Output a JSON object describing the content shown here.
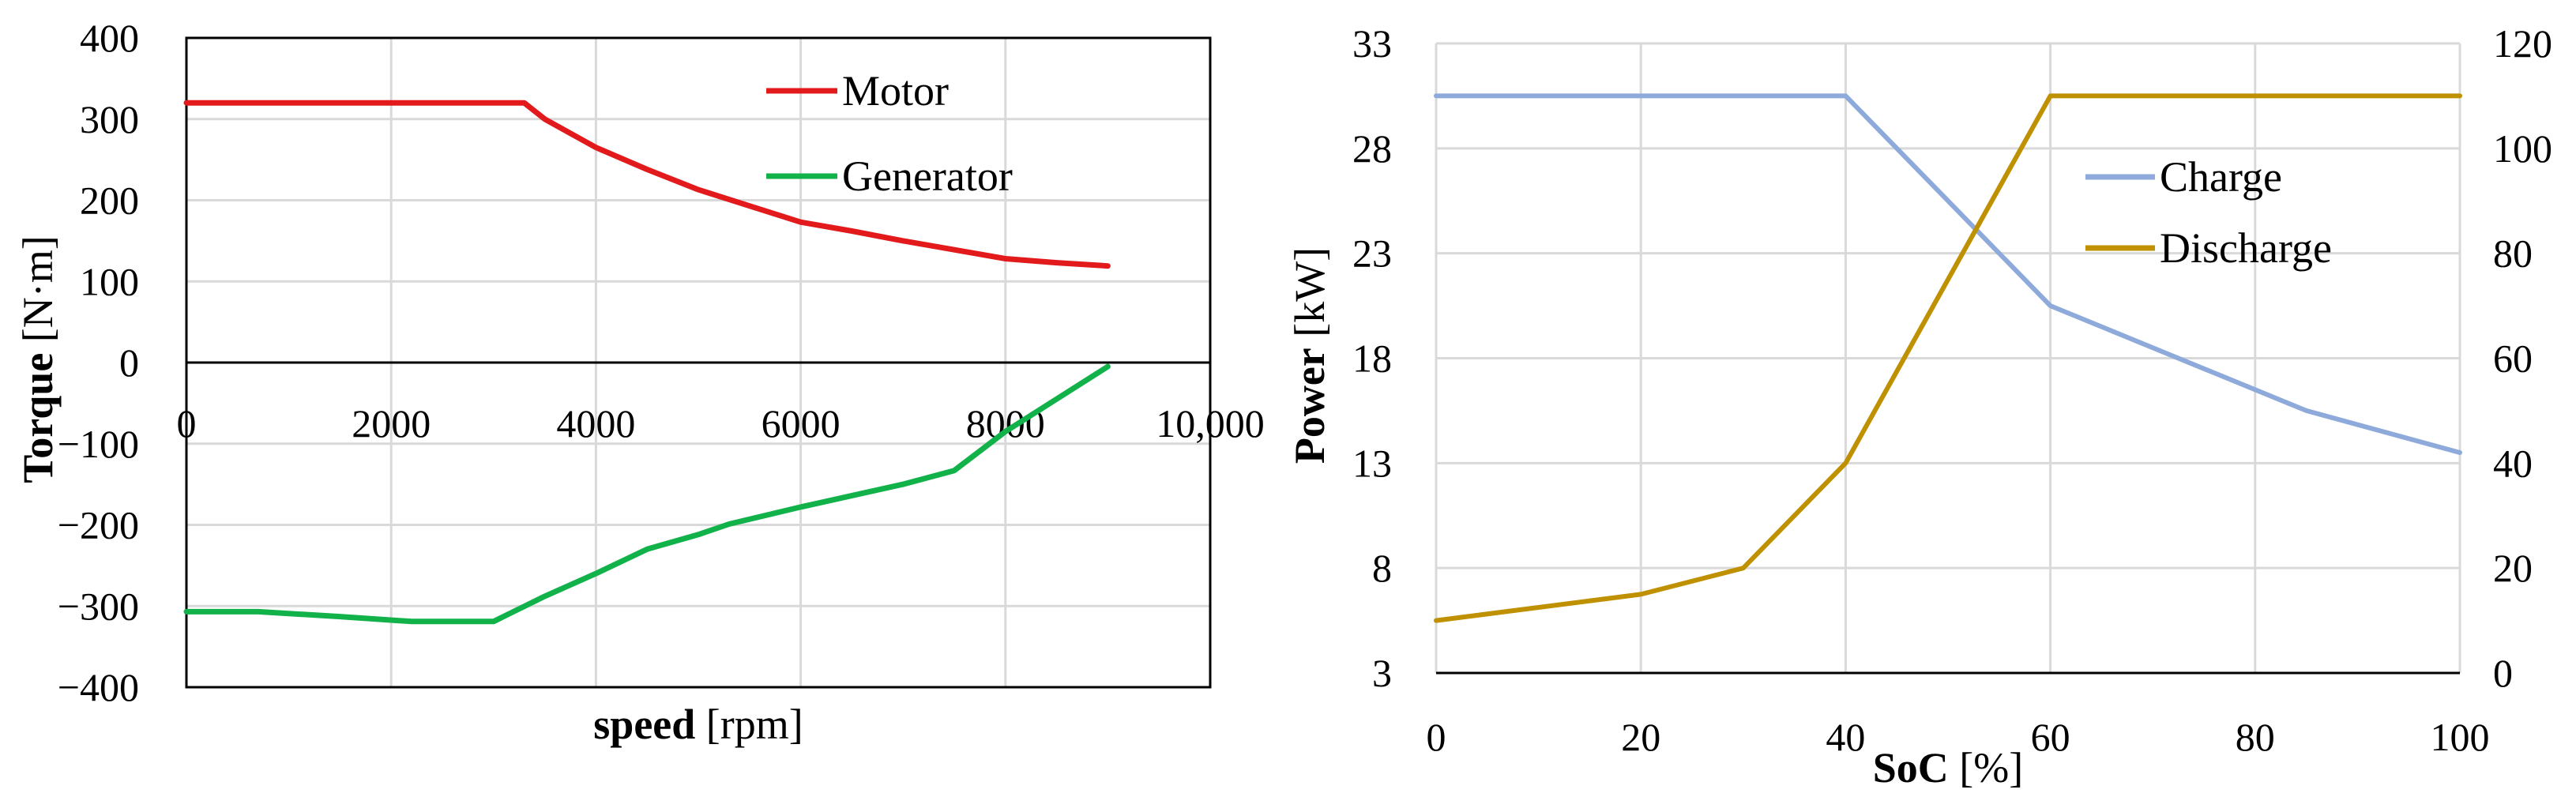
{
  "chart_data": [
    {
      "type": "line",
      "xlabel_bold": "speed",
      "xlabel_unit": " [rpm]",
      "ylabel_bold": "Torque",
      "ylabel_unit": " [N·m]",
      "xlim": [
        0,
        10000
      ],
      "ylim": [
        -400,
        400
      ],
      "x_ticks": [
        0,
        2000,
        4000,
        6000,
        8000,
        10000
      ],
      "x_tick_labels": [
        "0",
        "2000",
        "4000",
        "6000",
        "8000",
        "10,000"
      ],
      "y_ticks": [
        -400,
        -300,
        -200,
        -100,
        0,
        100,
        200,
        300,
        400
      ],
      "y_tick_labels": [
        "−400",
        "−300",
        "−200",
        "−100",
        "0",
        "100",
        "200",
        "300",
        "400"
      ],
      "grid": true,
      "legend_position": "top-right",
      "series": [
        {
          "name": "Motor",
          "color": "#e31a1c",
          "x": [
            0,
            3300,
            3500,
            4000,
            4500,
            5000,
            5500,
            6000,
            6500,
            7000,
            7500,
            8000,
            8500,
            9000
          ],
          "y": [
            320,
            320,
            300,
            265,
            238,
            213,
            193,
            173,
            162,
            150,
            139,
            128,
            123,
            119
          ]
        },
        {
          "name": "Generator",
          "color": "#12b24a",
          "x": [
            0,
            700,
            1500,
            2200,
            3000,
            3500,
            4000,
            4500,
            5000,
            5300,
            6000,
            7000,
            7500,
            8000,
            8500,
            9000
          ],
          "y": [
            -307,
            -307,
            -313,
            -319,
            -319,
            -288,
            -260,
            -230,
            -212,
            -199,
            -178,
            -150,
            -133,
            -85,
            -45,
            -5
          ]
        }
      ]
    },
    {
      "type": "line",
      "xlabel_bold": "SoC",
      "xlabel_unit": " [%]",
      "ylabel_bold": "Power",
      "ylabel_unit": " [kW]",
      "xlim": [
        0,
        100
      ],
      "ylim": [
        3,
        33
      ],
      "y2lim": [
        0,
        120
      ],
      "x_ticks": [
        0,
        20,
        40,
        60,
        80,
        100
      ],
      "x_tick_labels": [
        "0",
        "20",
        "40",
        "60",
        "80",
        "100"
      ],
      "y_ticks": [
        3,
        8,
        13,
        18,
        23,
        28,
        33
      ],
      "y_tick_labels": [
        "3",
        "8",
        "13",
        "18",
        "23",
        "28",
        "33"
      ],
      "y2_ticks": [
        0,
        20,
        40,
        60,
        80,
        100,
        120
      ],
      "y2_tick_labels": [
        "0",
        "20",
        "40",
        "60",
        "80",
        "100",
        "120"
      ],
      "grid": true,
      "legend_position": "center-right",
      "series": [
        {
          "name": "Charge",
          "axis": "left",
          "color": "#8eaadb",
          "x": [
            0,
            40,
            60,
            85,
            100
          ],
          "y": [
            30.5,
            30.5,
            20.5,
            15.5,
            13.5
          ]
        },
        {
          "name": "Discharge",
          "axis": "right",
          "color": "#bf9000",
          "x": [
            0,
            20,
            30,
            40,
            60,
            100
          ],
          "y": [
            10,
            15,
            20,
            40,
            110,
            110
          ]
        }
      ]
    }
  ]
}
